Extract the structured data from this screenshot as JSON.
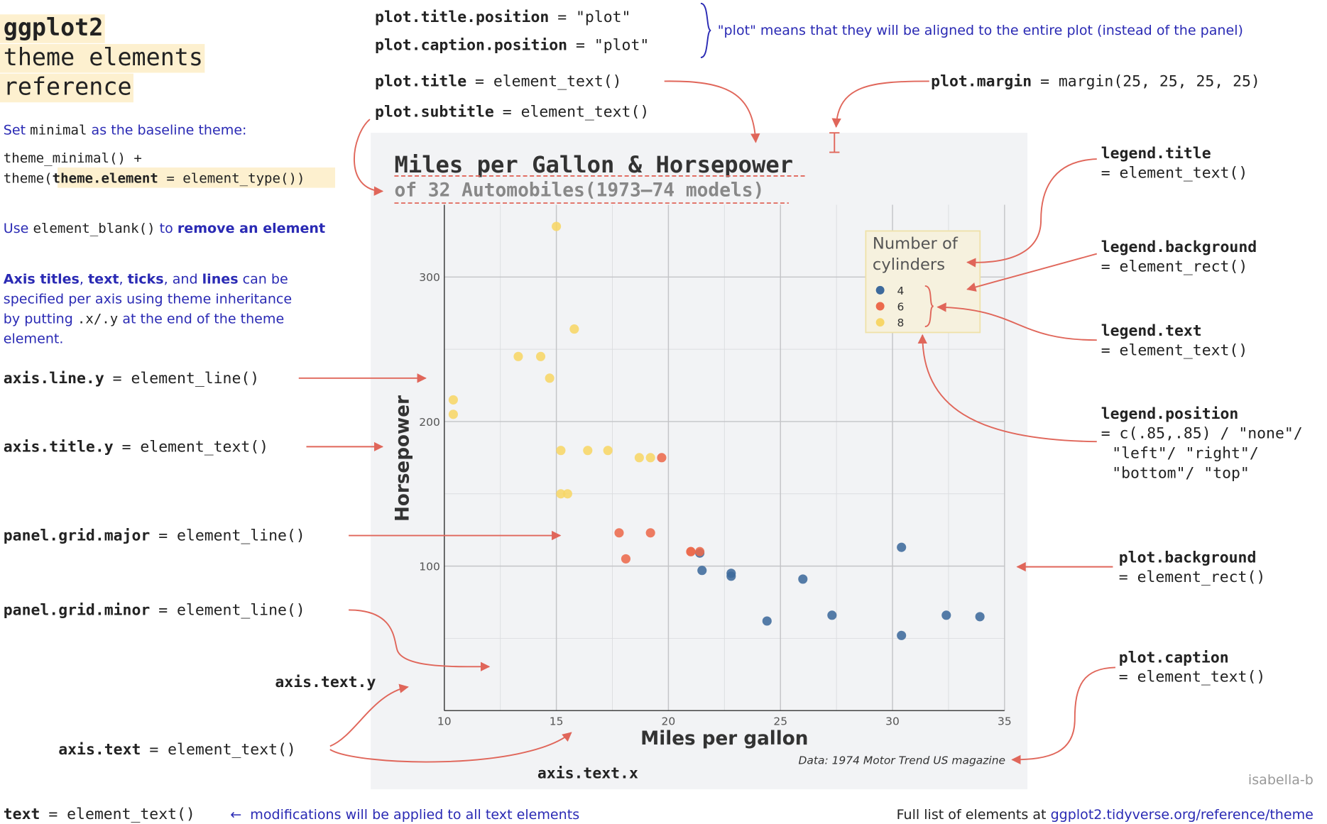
{
  "header": {
    "title": [
      "ggplot2",
      "theme elements",
      "reference"
    ]
  },
  "intro": {
    "baseline": [
      "Set ",
      "minimal",
      " as the baseline theme:"
    ],
    "code": [
      "theme_minimal() +",
      "theme(",
      "theme.element",
      " = element_type()",
      ")"
    ],
    "blank": [
      "Use ",
      "element_blank()",
      " to ",
      "remove an element"
    ],
    "inheritance": [
      [
        "Axis titles",
        ", ",
        "text",
        ", ",
        "ticks",
        ", and ",
        "lines",
        " can be"
      ],
      [
        "specified per axis using theme inheritance"
      ],
      [
        "by putting ",
        ".x/.y",
        " at the end of the theme"
      ],
      [
        "element."
      ]
    ]
  },
  "elements": [
    {
      "name": "plot.title.position",
      "value": "= \"plot\""
    },
    {
      "name": "plot.caption.position",
      "value": "= \"plot\""
    },
    {
      "name": "plot.title",
      "value": "= element_text()"
    },
    {
      "name": "plot.subtitle",
      "value": "= element_text()"
    },
    {
      "name": "plot.margin",
      "value": "= margin(25, 25, 25, 25)"
    },
    {
      "name": "axis.line.y",
      "value": "= element_line()"
    },
    {
      "name": "axis.title.y",
      "value": "= element_text()"
    },
    {
      "name": "panel.grid.major",
      "value": "= element_line()"
    },
    {
      "name": "panel.grid.minor",
      "value": "= element_line()"
    },
    {
      "name": "axis.text",
      "value": "= element_text()"
    },
    {
      "name": "text",
      "value": "= element_text()"
    }
  ],
  "stacked_elements": [
    {
      "name": "legend.title",
      "lines": [
        "= element_text()"
      ]
    },
    {
      "name": "legend.background",
      "lines": [
        "= element_rect()"
      ]
    },
    {
      "name": "legend.text",
      "lines": [
        "= element_text()"
      ]
    },
    {
      "name": "legend.position",
      "lines": [
        "= c(.85,.85) / \"none\"/",
        "\"left\"/ \"right\"/",
        "\"bottom\"/ \"top\""
      ]
    },
    {
      "name": "plot.background",
      "lines": [
        "= element_rect()"
      ]
    },
    {
      "name": "plot.caption",
      "lines": [
        "= element_text()"
      ]
    }
  ],
  "labels": [
    "axis.text.y",
    "axis.text.x"
  ],
  "notes": {
    "position": "\"plot\" means that they will be aligned to the entire plot (instead of the panel)",
    "text": "←  modifications will be applied to all text elements",
    "footer": [
      "Full list of elements at ",
      "ggplot2.tidyverse.org/reference/theme"
    ],
    "credit": "isabella-b"
  },
  "chart_data": {
    "type": "scatter",
    "title": "Miles per Gallon & Horsepower",
    "subtitle": "of 32 Automobiles(1973–74 models)",
    "x_label": "Miles per gallon",
    "y_label": "Horsepower",
    "caption": "Data: 1974 Motor Trend US magazine",
    "legend_title": [
      "Number of",
      "cylinders"
    ],
    "xlim": [
      10,
      35
    ],
    "ylim": [
      0,
      350
    ],
    "xticks": [
      10,
      15,
      20,
      25,
      30,
      35
    ],
    "yticks": [
      100,
      200,
      300
    ],
    "minor_xticks": [
      12.5,
      17.5,
      22.5,
      27.5,
      32.5
    ],
    "minor_yticks": [
      50,
      150,
      250
    ],
    "grid": true,
    "legend_position": "top-right",
    "series": [
      {
        "name": "4",
        "color": "#3d6a9c",
        "x": [
          22.8,
          24.4,
          22.8,
          32.4,
          30.4,
          33.9,
          21.5,
          27.3,
          26.0,
          30.4,
          21.4
        ],
        "values": [
          93,
          62,
          95,
          66,
          52,
          65,
          97,
          66,
          91,
          113,
          109
        ]
      },
      {
        "name": "6",
        "color": "#ec6a4c",
        "x": [
          21.0,
          21.0,
          21.4,
          18.1,
          19.2,
          17.8,
          19.7
        ],
        "values": [
          110,
          110,
          110,
          105,
          123,
          123,
          175
        ]
      },
      {
        "name": "8",
        "color": "#f7d667",
        "x": [
          18.7,
          14.3,
          16.4,
          17.3,
          15.2,
          10.4,
          10.4,
          14.7,
          15.5,
          15.2,
          13.3,
          19.2,
          15.8,
          15.0
        ],
        "values": [
          175,
          245,
          180,
          180,
          180,
          205,
          215,
          230,
          150,
          150,
          245,
          175,
          264,
          335
        ]
      }
    ]
  }
}
